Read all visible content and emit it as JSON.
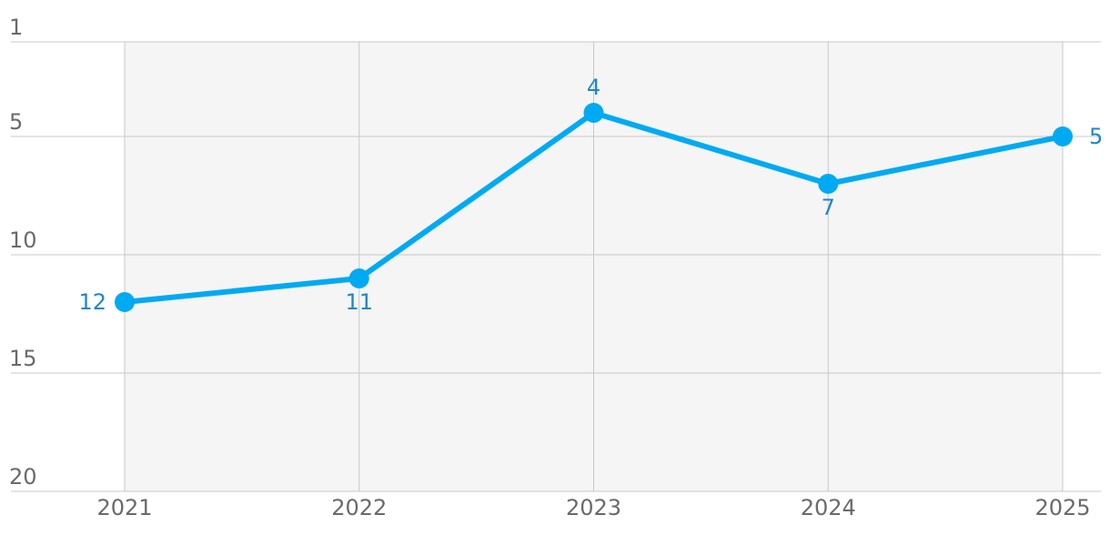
{
  "chart_data": {
    "type": "line",
    "title": "",
    "xlabel": "",
    "ylabel": "",
    "categories": [
      "2021",
      "2022",
      "2023",
      "2024",
      "2025"
    ],
    "series": [
      {
        "values": [
          12,
          11,
          4,
          7,
          5
        ],
        "labels": [
          "12",
          "11",
          "4",
          "7",
          "5"
        ],
        "label_positions": [
          "left",
          "below",
          "above",
          "below",
          "right"
        ]
      }
    ],
    "y_axis": {
      "reversed": true,
      "range": [
        1,
        20
      ],
      "ticks": [
        1,
        5,
        10,
        15,
        20
      ],
      "tick_labels": [
        "1",
        "5",
        "10",
        "15",
        "20"
      ]
    },
    "grid": true,
    "colors": {
      "line": "#00aaf2",
      "marker": "#00aaf2",
      "data_label": "#1f86c8",
      "plot_background": "#f5f5f5",
      "grid": "#c8c8c8",
      "tick_label": "#6a6a6a"
    }
  }
}
